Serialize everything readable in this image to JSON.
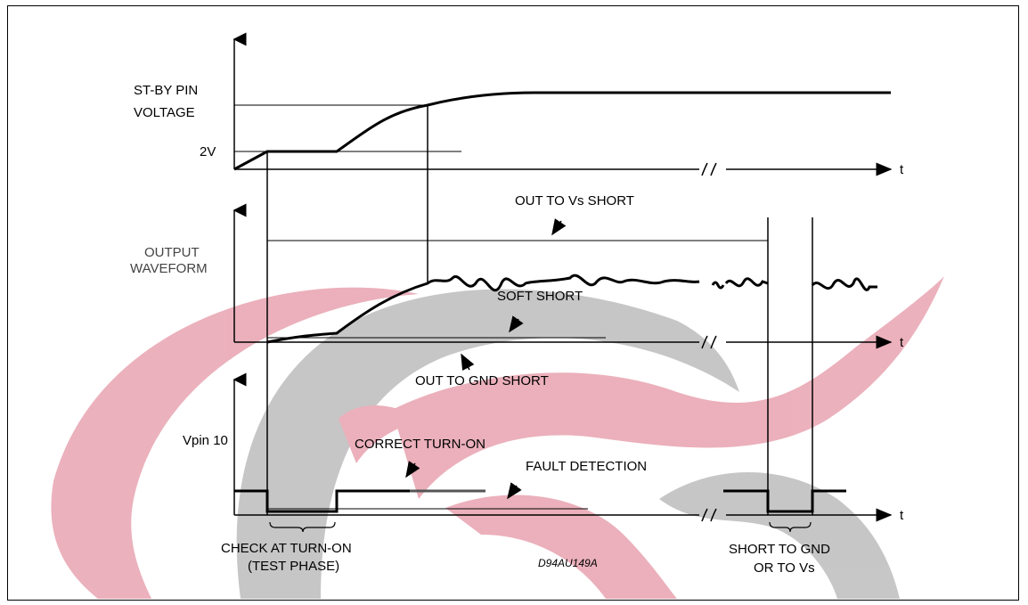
{
  "diagram": {
    "top_panel": {
      "ylabel_line1": "ST-BY PIN",
      "ylabel_line2": "VOLTAGE",
      "level_label": "2V",
      "t_label": "t"
    },
    "middle_panel": {
      "ylabel_line1": "OUTPUT",
      "ylabel_line2": "WAVEFORM",
      "annotation_vs_short": "OUT TO Vs SHORT",
      "annotation_soft_short": "SOFT SHORT",
      "annotation_gnd_short": "OUT TO GND SHORT",
      "t_label": "t"
    },
    "bottom_panel": {
      "ylabel": "Vpin 10",
      "annotation_correct": "CORRECT TURN-ON",
      "annotation_fault": "FAULT DETECTION",
      "check_line1": "CHECK AT TURN-ON",
      "check_line2": "(TEST PHASE)",
      "short_line1": "SHORT TO GND",
      "short_line2": "OR TO Vs",
      "t_label": "t"
    },
    "figure_code": "D94AU149A",
    "colors": {
      "watermark_red": "#e8a3b0",
      "watermark_gray": "#bdbdbd",
      "ink": "#000000"
    }
  }
}
